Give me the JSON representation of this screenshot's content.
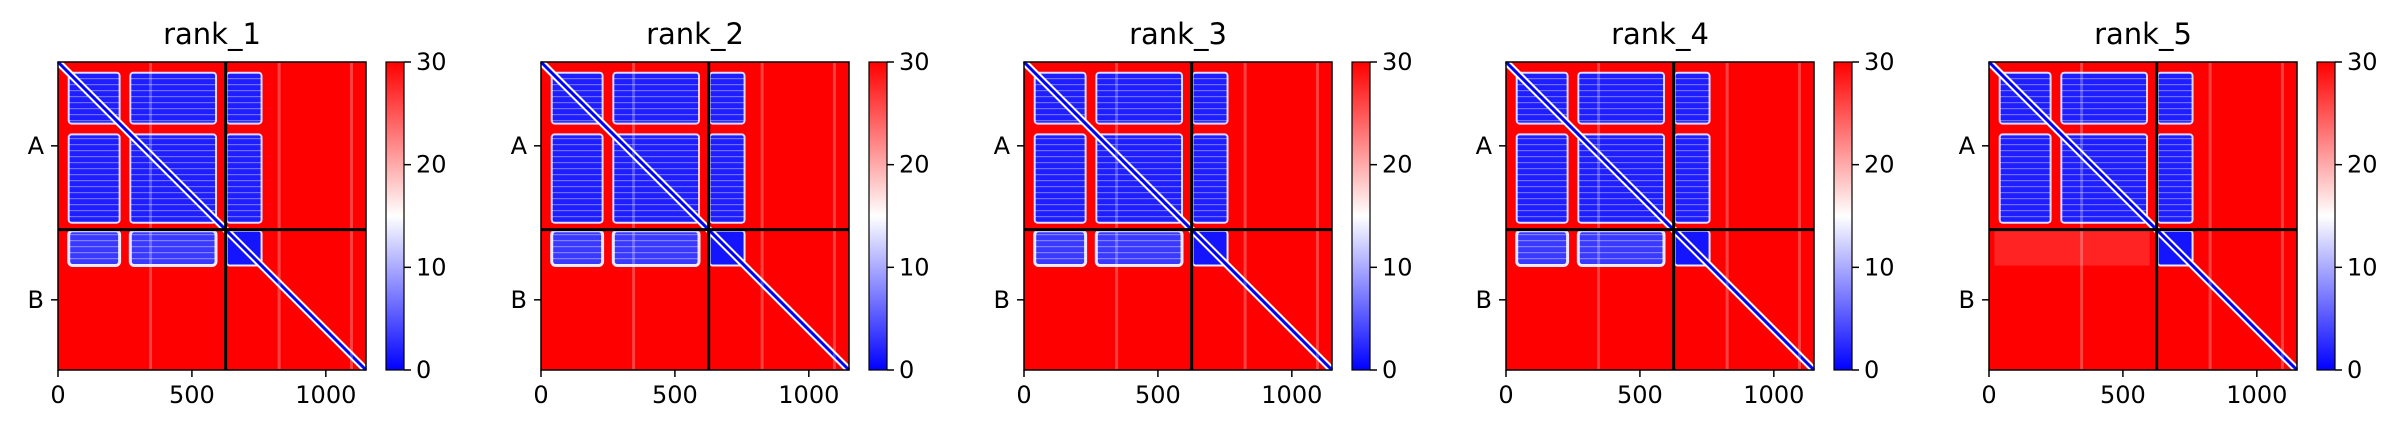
{
  "chart_data": [
    {
      "type": "heatmap",
      "title": "rank_1",
      "xticks": [
        0,
        500,
        1000
      ],
      "xlim": [
        0,
        1150
      ],
      "chain_labels": [
        "A",
        "B"
      ],
      "chain_boundary": 626,
      "colorbar": {
        "ticks": [
          0,
          10,
          20,
          30
        ],
        "range": [
          0,
          30
        ],
        "colormap": "bwr"
      },
      "grid": false
    },
    {
      "type": "heatmap",
      "title": "rank_2",
      "xticks": [
        0,
        500,
        1000
      ],
      "xlim": [
        0,
        1150
      ],
      "chain_labels": [
        "A",
        "B"
      ],
      "chain_boundary": 626,
      "colorbar": {
        "ticks": [
          0,
          10,
          20,
          30
        ],
        "range": [
          0,
          30
        ],
        "colormap": "bwr"
      },
      "grid": false
    },
    {
      "type": "heatmap",
      "title": "rank_3",
      "xticks": [
        0,
        500,
        1000
      ],
      "xlim": [
        0,
        1150
      ],
      "chain_labels": [
        "A",
        "B"
      ],
      "chain_boundary": 626,
      "colorbar": {
        "ticks": [
          0,
          10,
          20,
          30
        ],
        "range": [
          0,
          30
        ],
        "colormap": "bwr"
      },
      "grid": false
    },
    {
      "type": "heatmap",
      "title": "rank_4",
      "xticks": [
        0,
        500,
        1000
      ],
      "xlim": [
        0,
        1150
      ],
      "chain_labels": [
        "A",
        "B"
      ],
      "chain_boundary": 626,
      "colorbar": {
        "ticks": [
          0,
          10,
          20,
          30
        ],
        "range": [
          0,
          30
        ],
        "colormap": "bwr"
      },
      "grid": false
    },
    {
      "type": "heatmap",
      "title": "rank_5",
      "xticks": [
        0,
        500,
        1000
      ],
      "xlim": [
        0,
        1150
      ],
      "chain_labels": [
        "A",
        "B"
      ],
      "chain_boundary": 626,
      "colorbar": {
        "ticks": [
          0,
          10,
          20,
          30
        ],
        "range": [
          0,
          30
        ],
        "colormap": "bwr"
      },
      "grid": false
    }
  ],
  "colors": {
    "low": "#0000ff",
    "mid": "#ffffff",
    "high": "#ff0000",
    "frame": "#000000"
  }
}
